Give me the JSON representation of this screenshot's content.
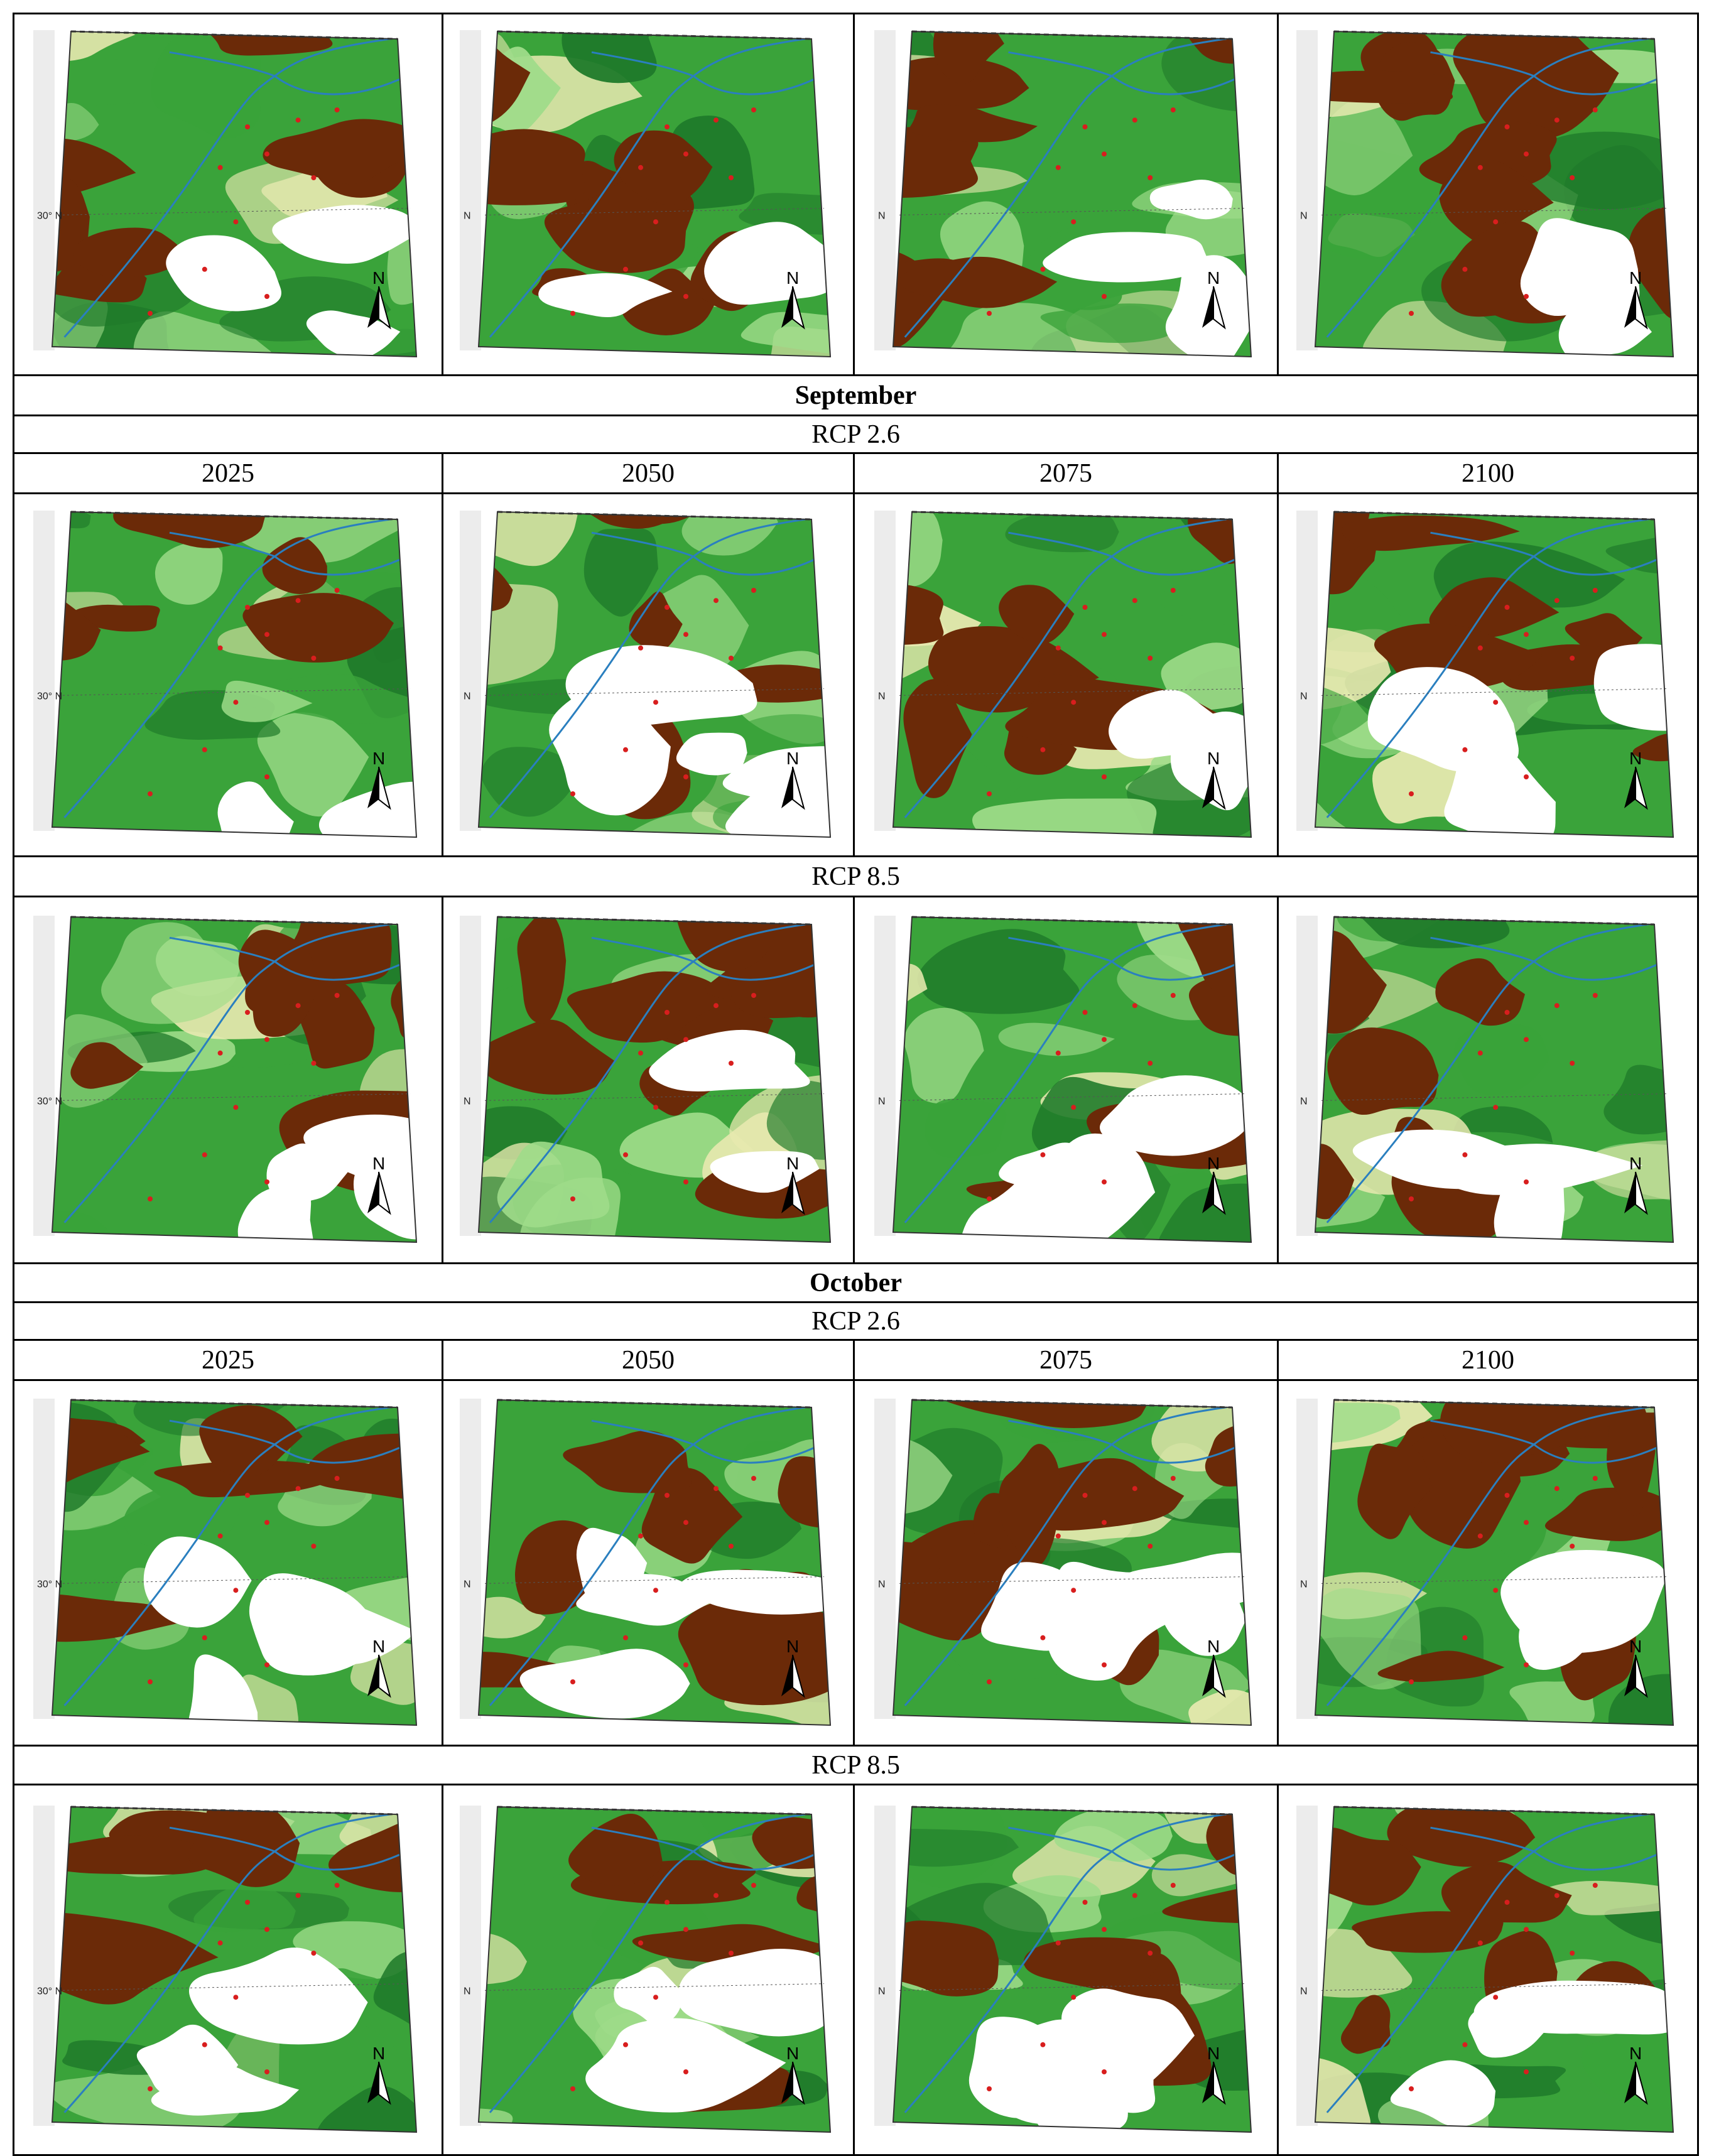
{
  "figure": {
    "months": [
      {
        "label": "",
        "scenarios": [
          {
            "label": ""
          }
        ],
        "years": []
      },
      {
        "label": "September",
        "scenarios": [
          {
            "label": "RCP 2.6"
          },
          {
            "label": "RCP 8.5"
          }
        ],
        "years": [
          "2025",
          "2050",
          "2075",
          "2100"
        ]
      },
      {
        "label": "October",
        "scenarios": [
          {
            "label": "RCP 2.6"
          },
          {
            "label": "RCP 8.5"
          }
        ],
        "years": [
          "2025",
          "2050",
          "2075",
          "2100"
        ]
      }
    ],
    "latitude_label": "30",
    "latitude_label_deg": "30° N",
    "north_label": "N",
    "north_arrow_letter": "N",
    "legend_colors": {
      "brown": "#6b2a08",
      "dark_green": "#1f7a2a",
      "green": "#3aa33a",
      "light_green": "#9fdc8a",
      "pale": "#e8e9b0",
      "white": "#ffffff",
      "river": "#2a7fbf",
      "city": "#d81e1e"
    },
    "icons": [
      "north-arrow-icon"
    ]
  }
}
